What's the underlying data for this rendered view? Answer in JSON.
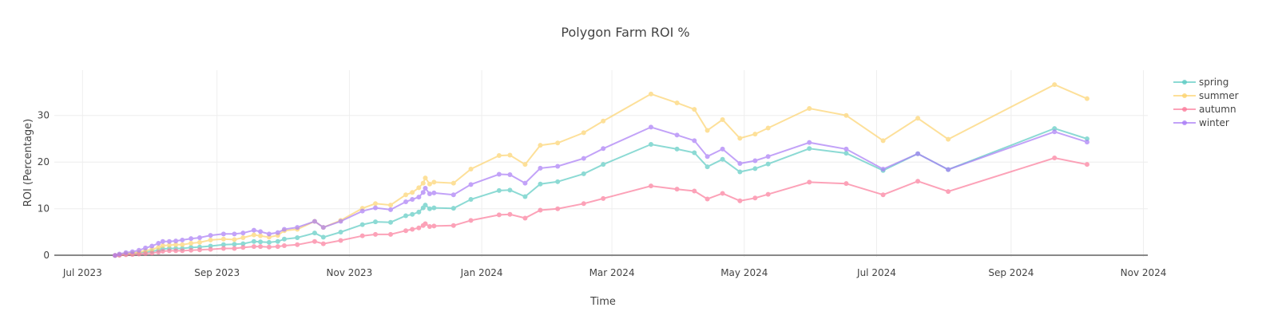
{
  "chart_data": {
    "type": "line",
    "title": "Polygon Farm ROI %",
    "xlabel": "Time",
    "ylabel": "ROI (Percentage)",
    "xlim": [
      "2023-06-18",
      "2024-11-03"
    ],
    "ylim": [
      -0.3,
      39.7
    ],
    "grid": true,
    "legend_position": "top-right",
    "x_ticks": [
      {
        "date": "2023-07-01",
        "label": "Jul 2023"
      },
      {
        "date": "2023-09-01",
        "label": "Sep 2023"
      },
      {
        "date": "2023-11-01",
        "label": "Nov 2023"
      },
      {
        "date": "2024-01-01",
        "label": "Jan 2024"
      },
      {
        "date": "2024-03-01",
        "label": "Mar 2024"
      },
      {
        "date": "2024-05-01",
        "label": "May 2024"
      },
      {
        "date": "2024-07-01",
        "label": "Jul 2024"
      },
      {
        "date": "2024-09-01",
        "label": "Sep 2024"
      },
      {
        "date": "2024-11-01",
        "label": "Nov 2024"
      }
    ],
    "y_ticks": [
      0,
      10,
      20,
      30
    ],
    "x": [
      "2023-07-16",
      "2023-07-18",
      "2023-07-21",
      "2023-07-24",
      "2023-07-27",
      "2023-07-30",
      "2023-08-02",
      "2023-08-05",
      "2023-08-07",
      "2023-08-10",
      "2023-08-13",
      "2023-08-16",
      "2023-08-20",
      "2023-08-24",
      "2023-08-29",
      "2023-09-04",
      "2023-09-09",
      "2023-09-13",
      "2023-09-18",
      "2023-09-21",
      "2023-09-25",
      "2023-09-29",
      "2023-10-02",
      "2023-10-08",
      "2023-10-16",
      "2023-10-20",
      "2023-10-28",
      "2023-11-07",
      "2023-11-13",
      "2023-11-20",
      "2023-11-27",
      "2023-11-30",
      "2023-12-03",
      "2023-12-05",
      "2023-12-06",
      "2023-12-08",
      "2023-12-10",
      "2023-12-19",
      "2023-12-27",
      "2024-01-09",
      "2024-01-14",
      "2024-01-21",
      "2024-01-28",
      "2024-02-05",
      "2024-02-17",
      "2024-02-26",
      "2024-03-19",
      "2024-03-31",
      "2024-04-08",
      "2024-04-14",
      "2024-04-21",
      "2024-04-29",
      "2024-05-06",
      "2024-05-12",
      "2024-05-31",
      "2024-06-17",
      "2024-07-04",
      "2024-07-20",
      "2024-08-03",
      "2024-09-21",
      "2024-10-06"
    ],
    "series": [
      {
        "name": "spring",
        "color": "#5ccbc3",
        "values": [
          0,
          0.1,
          0.3,
          0.4,
          0.5,
          0.7,
          0.9,
          1.1,
          1.4,
          1.5,
          1.5,
          1.5,
          1.7,
          1.8,
          2.0,
          2.3,
          2.4,
          2.5,
          3.0,
          2.9,
          2.8,
          3.0,
          3.5,
          3.8,
          4.8,
          3.9,
          5.0,
          6.6,
          7.2,
          7.1,
          8.5,
          8.8,
          9.3,
          10.2,
          10.8,
          10.0,
          10.2,
          10.1,
          12.0,
          13.9,
          14.0,
          12.6,
          15.3,
          15.8,
          17.5,
          19.5,
          23.8,
          22.8,
          22.0,
          19.0,
          20.6,
          17.9,
          18.6,
          19.6,
          22.9,
          21.9,
          18.2,
          21.8,
          18.4,
          27.2,
          25.0
        ]
      },
      {
        "name": "summer",
        "color": "#fdd36f",
        "values": [
          0,
          0.2,
          0.4,
          0.5,
          0.7,
          1.0,
          1.3,
          1.7,
          2.1,
          2.2,
          2.3,
          2.3,
          2.6,
          2.8,
          3.3,
          3.5,
          3.4,
          3.8,
          4.4,
          4.2,
          3.9,
          4.3,
          5.3,
          5.6,
          7.3,
          6.0,
          7.5,
          10.1,
          11.1,
          10.8,
          13.0,
          13.5,
          14.5,
          15.5,
          16.6,
          15.3,
          15.7,
          15.5,
          18.5,
          21.4,
          21.5,
          19.5,
          23.6,
          24.1,
          26.3,
          28.8,
          34.6,
          32.7,
          31.3,
          26.8,
          29.1,
          25.1,
          26.0,
          27.3,
          31.5,
          30.0,
          24.6,
          29.4,
          24.9,
          36.6,
          33.6
        ]
      },
      {
        "name": "autumn",
        "color": "#fb7c9b",
        "values": [
          0,
          0.05,
          0.15,
          0.2,
          0.3,
          0.4,
          0.5,
          0.7,
          0.9,
          1.0,
          1.0,
          1.0,
          1.1,
          1.2,
          1.3,
          1.5,
          1.5,
          1.7,
          1.9,
          1.9,
          1.8,
          1.9,
          2.1,
          2.3,
          3.0,
          2.5,
          3.2,
          4.2,
          4.5,
          4.5,
          5.3,
          5.6,
          5.9,
          6.4,
          6.8,
          6.2,
          6.3,
          6.4,
          7.5,
          8.7,
          8.8,
          8.0,
          9.7,
          10.0,
          11.1,
          12.2,
          14.9,
          14.2,
          13.8,
          12.1,
          13.3,
          11.7,
          12.3,
          13.1,
          15.7,
          15.4,
          13.0,
          15.9,
          13.7,
          20.9,
          19.5
        ]
      },
      {
        "name": "winter",
        "color": "#a97cf6",
        "values": [
          0,
          0.3,
          0.6,
          0.8,
          1.1,
          1.6,
          2.0,
          2.6,
          3.0,
          3.0,
          3.1,
          3.3,
          3.6,
          3.8,
          4.3,
          4.6,
          4.6,
          4.8,
          5.4,
          5.1,
          4.6,
          4.9,
          5.6,
          6.0,
          7.3,
          6.0,
          7.3,
          9.5,
          10.2,
          9.8,
          11.5,
          12.0,
          12.5,
          13.5,
          14.4,
          13.2,
          13.4,
          13.0,
          15.2,
          17.4,
          17.3,
          15.5,
          18.7,
          19.1,
          20.8,
          22.9,
          27.5,
          25.8,
          24.6,
          21.2,
          22.8,
          19.7,
          20.3,
          21.2,
          24.2,
          22.8,
          18.5,
          21.8,
          18.4,
          26.5,
          24.3
        ]
      }
    ]
  }
}
